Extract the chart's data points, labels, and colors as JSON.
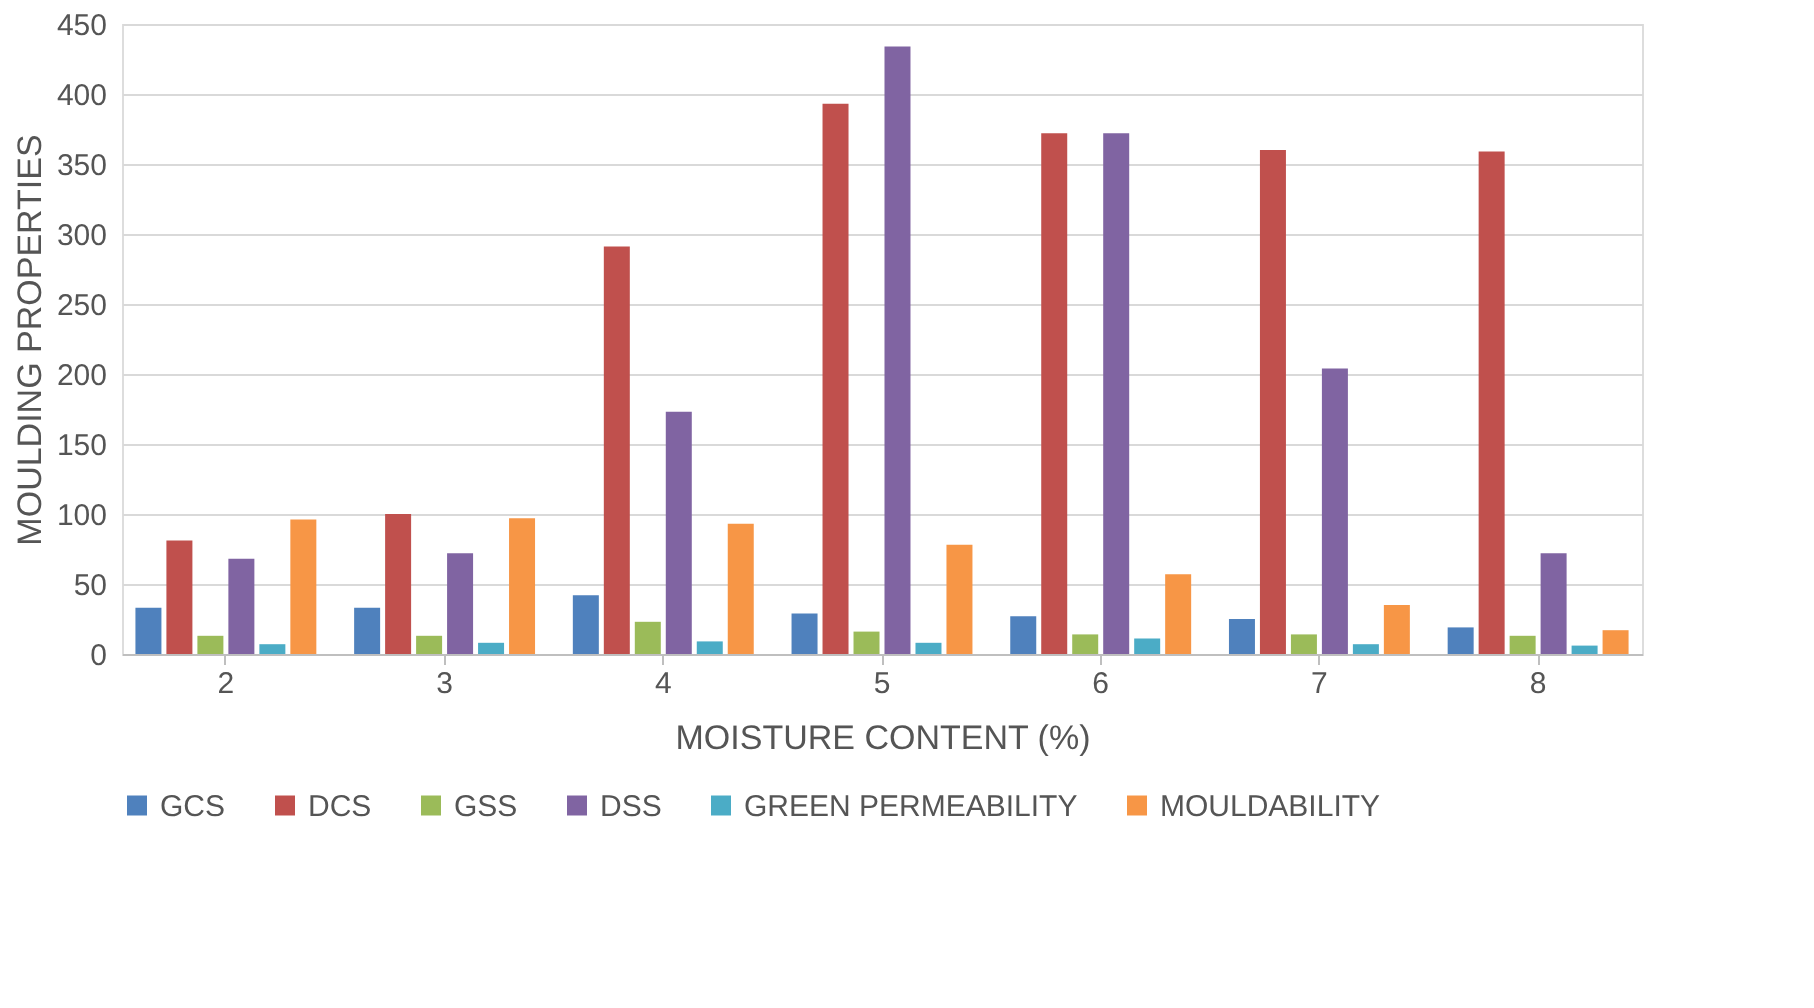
{
  "chart_data": {
    "type": "bar",
    "xlabel": "MOISTURE CONTENT (%)",
    "ylabel": "MOULDING PROPERTIES",
    "categories": [
      "2",
      "3",
      "4",
      "5",
      "6",
      "7",
      "8"
    ],
    "series": [
      {
        "name": "GCS",
        "color": "#4f81bd",
        "values": [
          33,
          33,
          42,
          29,
          27,
          25,
          19
        ]
      },
      {
        "name": "DCS",
        "color": "#c0504d",
        "values": [
          81,
          100,
          291,
          393,
          372,
          360,
          359
        ]
      },
      {
        "name": "GSS",
        "color": "#9bbb59",
        "values": [
          13,
          13,
          23,
          16,
          14,
          14,
          13
        ]
      },
      {
        "name": "DSS",
        "color": "#8064a2",
        "values": [
          68,
          72,
          173,
          434,
          372,
          204,
          72
        ]
      },
      {
        "name": "GREEN PERMEABILITY",
        "color": "#4bacc6",
        "values": [
          7,
          8,
          9,
          8,
          11,
          7,
          6
        ]
      },
      {
        "name": "MOULDABILITY",
        "color": "#f79646",
        "values": [
          96,
          97,
          93,
          78,
          57,
          35,
          17
        ]
      }
    ],
    "ylim": [
      0,
      450
    ],
    "yticks": [
      0,
      50,
      100,
      150,
      200,
      250,
      300,
      350,
      400,
      450
    ],
    "grid": "y",
    "legend": "bottom"
  }
}
